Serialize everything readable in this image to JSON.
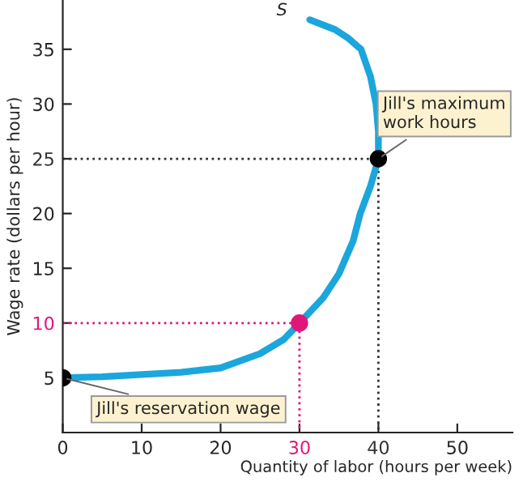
{
  "chart_data": {
    "type": "line",
    "xlabel": "Quantity of labor (hours per week)",
    "ylabel": "Wage rate (dollars per hour)",
    "xlim": [
      0,
      57
    ],
    "ylim": [
      0,
      39.5
    ],
    "xticks": [
      0,
      10,
      20,
      30,
      40,
      50
    ],
    "yticks": [
      5,
      10,
      15,
      20,
      25,
      30,
      35
    ],
    "grid": false,
    "legend": false,
    "series": [
      {
        "line_style": "dotted",
        "color": "#333333",
        "x": [
          0,
          40,
          40
        ],
        "values": [
          25,
          25,
          0
        ]
      },
      {
        "line_style": "dotted",
        "color": "#e0177a",
        "x": [
          0,
          30,
          30
        ],
        "values": [
          10,
          10,
          0
        ]
      },
      {
        "line_style": "solid",
        "color": "#1ba6dc",
        "x": [
          0,
          5,
          10,
          15,
          20,
          25,
          28,
          30,
          33,
          35,
          36.8,
          37.7,
          39,
          40,
          40,
          39.7,
          39,
          37.8,
          36.2,
          34.5,
          31.3
        ],
        "values": [
          5,
          5.1,
          5.3,
          5.5,
          5.9,
          7.2,
          8.5,
          10,
          12.3,
          14.5,
          17.5,
          20,
          22.5,
          25,
          27.5,
          30,
          32.5,
          35,
          36,
          36.8,
          37.7
        ]
      },
      {
        "type": "scatter",
        "marker": "circle",
        "colors": [
          "#000000",
          "#e0177a",
          "#000000"
        ],
        "x": [
          0,
          30,
          40
        ],
        "values": [
          5,
          10,
          25
        ]
      }
    ],
    "annotations": [
      {
        "text": "S",
        "x": 31.3,
        "y": 37.7
      },
      {
        "text": "Jill's maximum\nwork hours",
        "x": 40,
        "y": 25
      },
      {
        "text": "Jill's reservation wage",
        "x": 0,
        "y": 5
      }
    ]
  }
}
